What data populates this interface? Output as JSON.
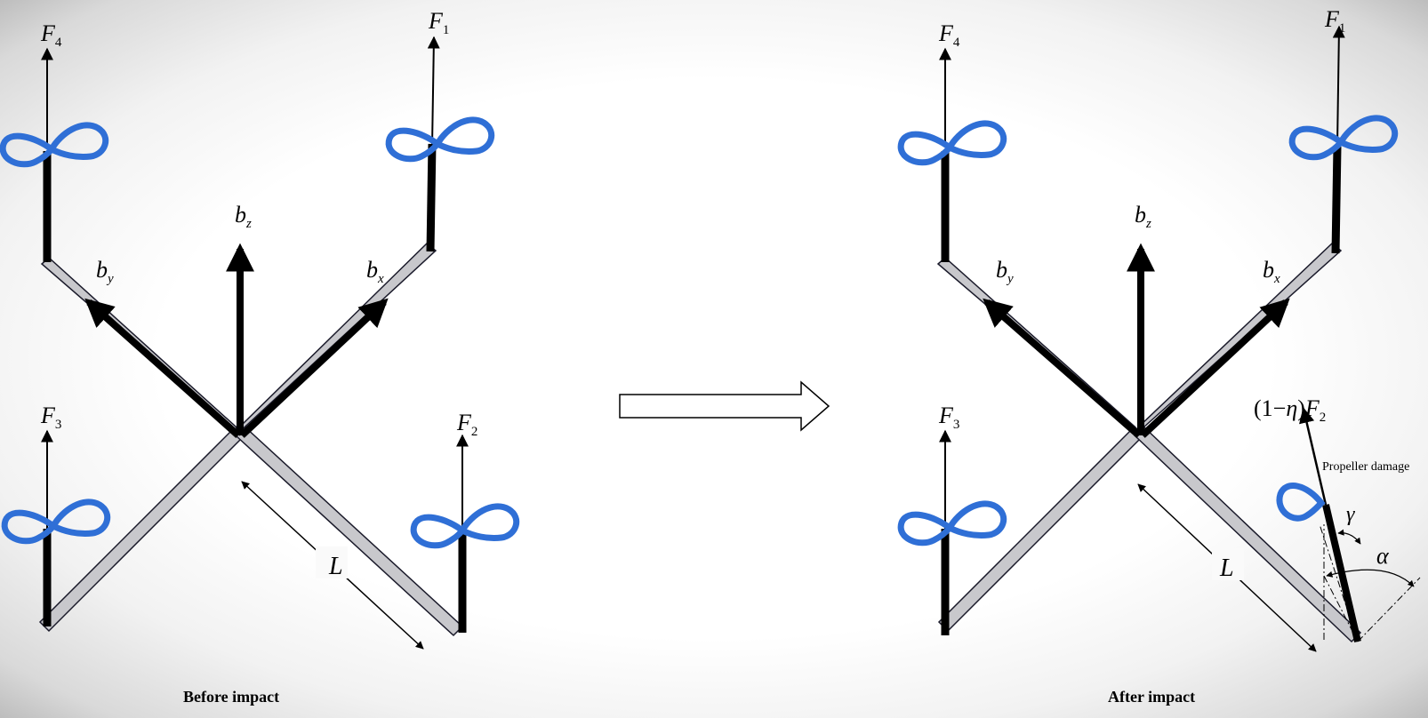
{
  "left": {
    "caption": "Before impact",
    "forces": {
      "f1": "F",
      "f1_sub": "1",
      "f2": "F",
      "f2_sub": "2",
      "f3": "F",
      "f3_sub": "3",
      "f4": "F",
      "f4_sub": "4"
    },
    "axes": {
      "bx": "b",
      "bx_sub": "x",
      "by": "b",
      "by_sub": "y",
      "bz": "b",
      "bz_sub": "z"
    },
    "length_label": "L"
  },
  "right": {
    "caption": "After impact",
    "forces": {
      "f1": "F",
      "f1_sub": "1",
      "f3": "F",
      "f3_sub": "3",
      "f4": "F",
      "f4_sub": "4"
    },
    "damaged_force": {
      "prefix": "(1−",
      "eta": "η",
      "suffix": ")",
      "f": "F",
      "f_sub": "2"
    },
    "axes": {
      "bx": "b",
      "bx_sub": "x",
      "by": "b",
      "by_sub": "y",
      "bz": "b",
      "bz_sub": "z"
    },
    "length_label": "L",
    "damage_note": "Propeller damage",
    "gamma": "γ",
    "alpha": "α"
  },
  "colors": {
    "propeller": "#2f6fd6",
    "arm_fill": "#c8c8cc",
    "line": "#000000"
  }
}
